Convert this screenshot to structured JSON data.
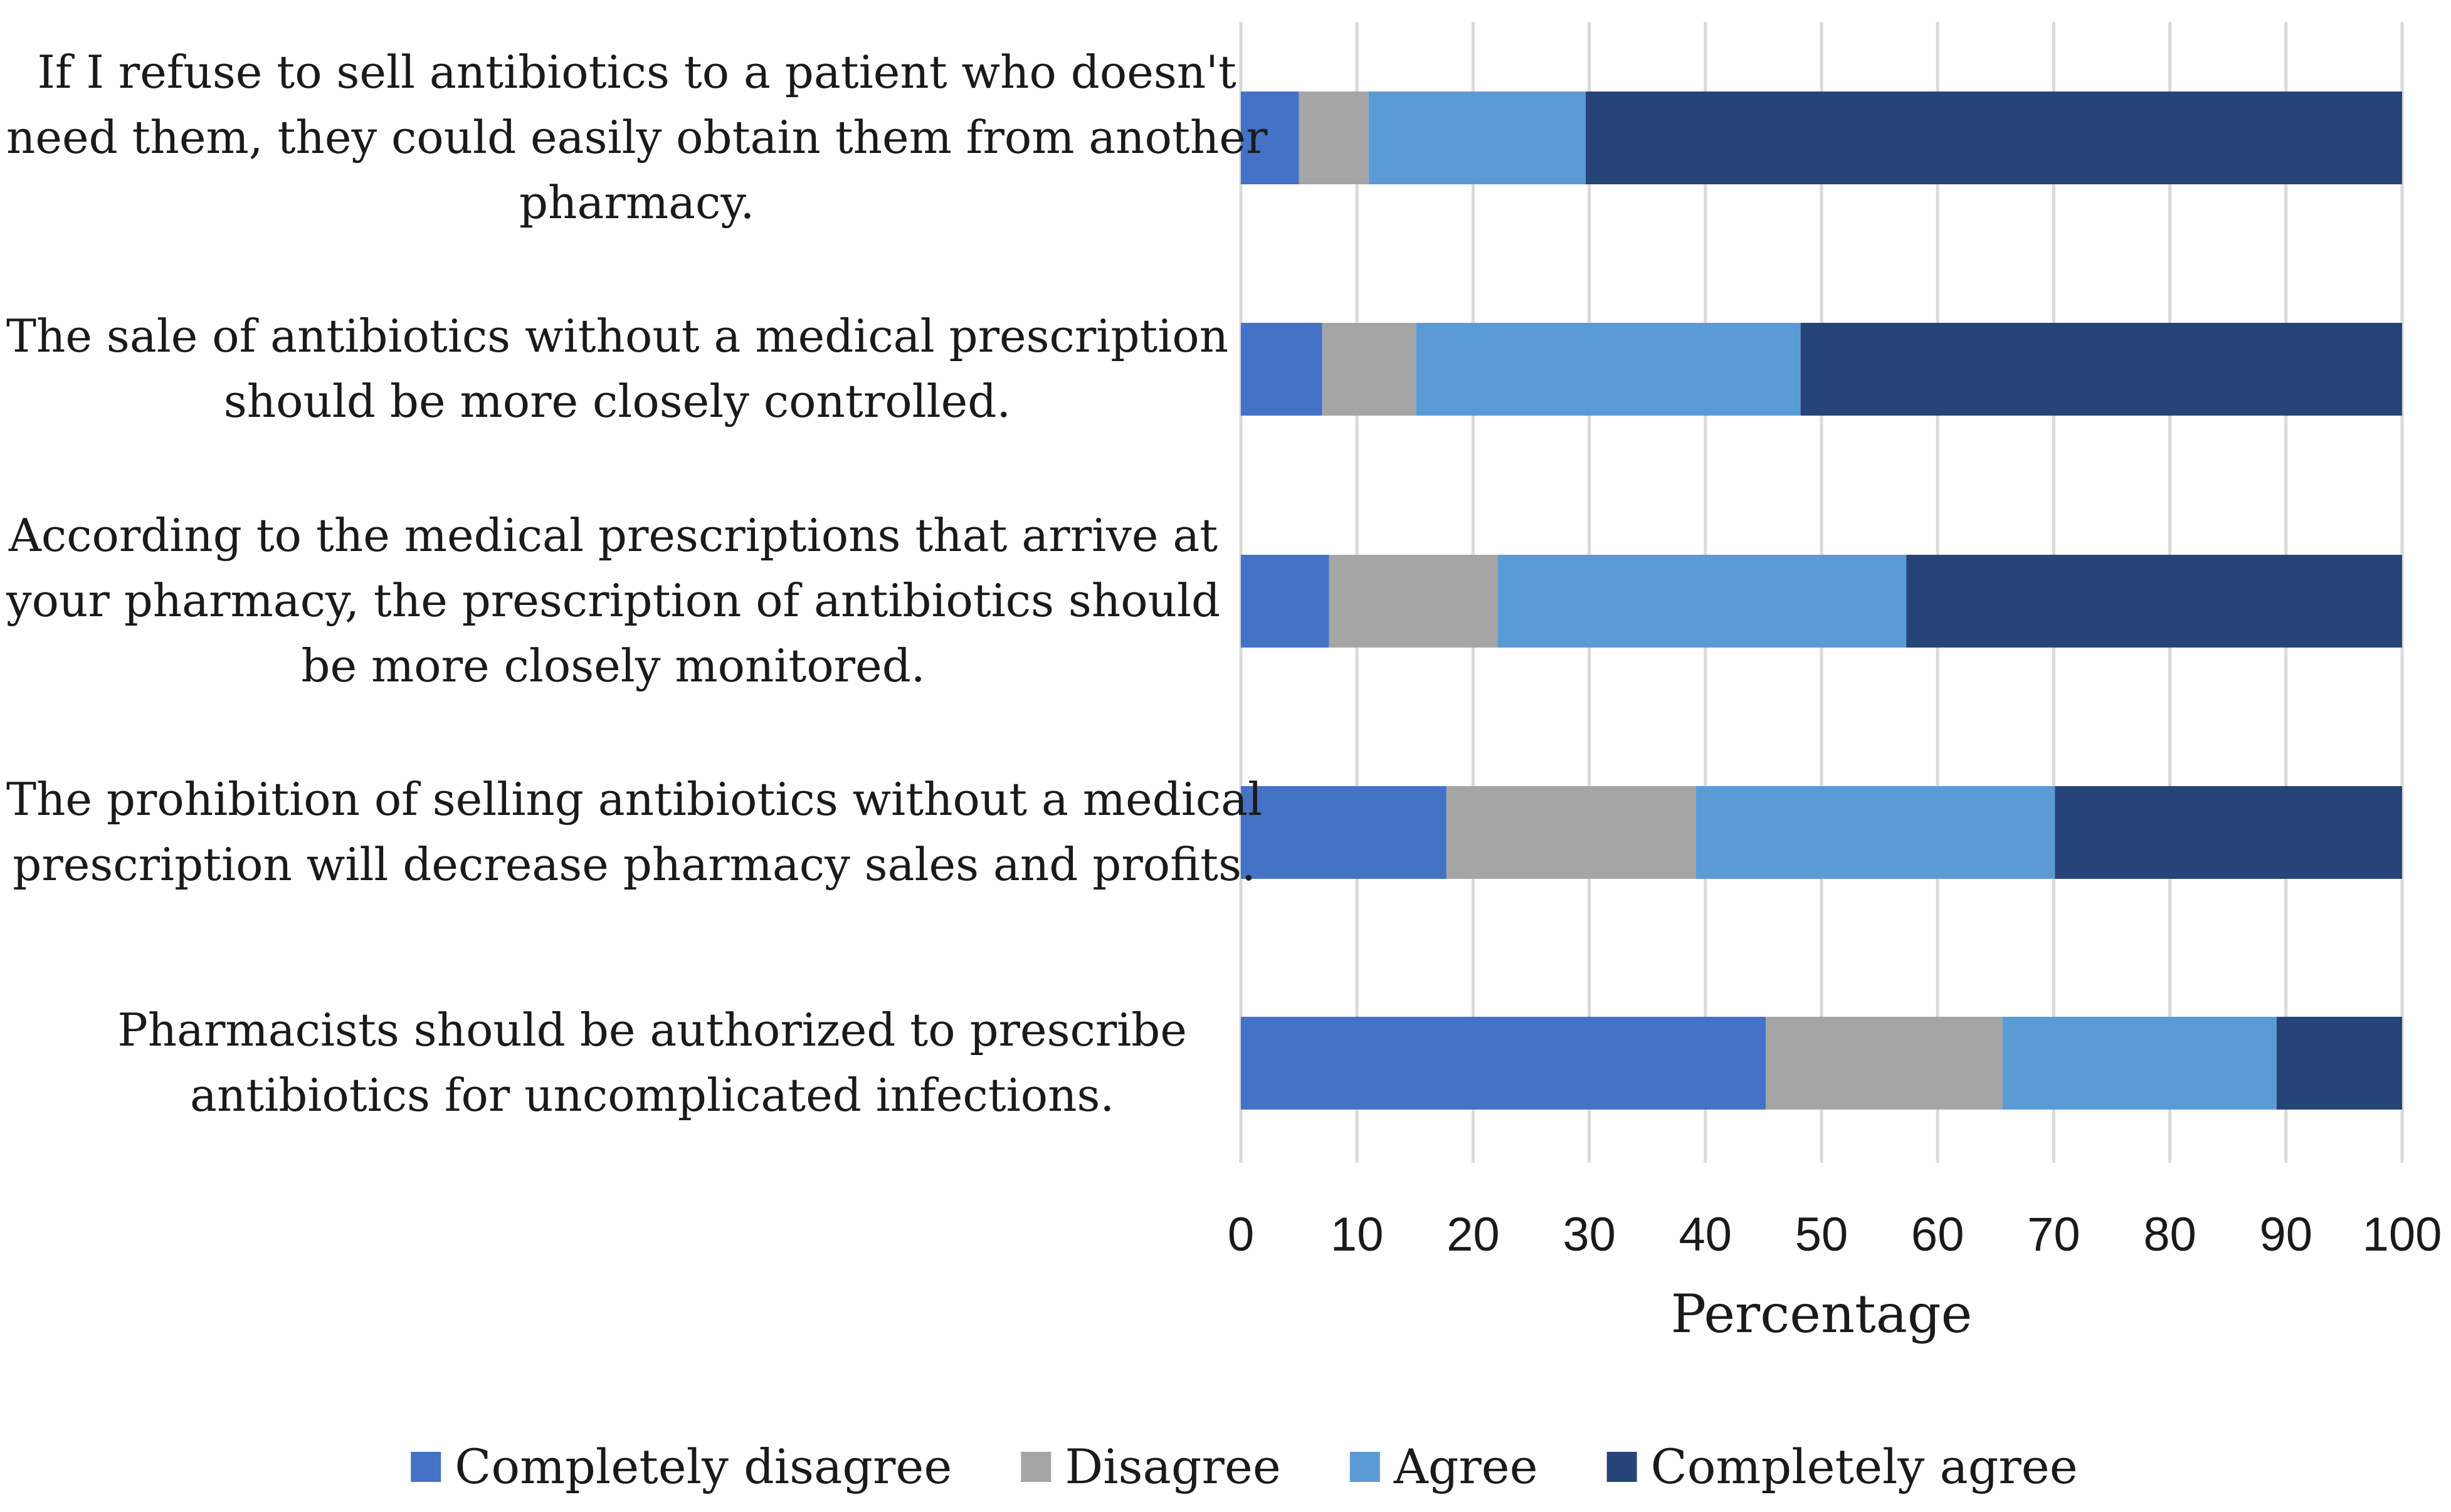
{
  "chart_data": {
    "type": "bar",
    "orientation": "horizontal",
    "stacked": true,
    "categories": [
      "If I refuse to sell antibiotics to a patient who doesn't need them, they could easily obtain them from another pharmacy.",
      "The sale of antibiotics without a medical prescription should be more closely controlled.",
      "According to the medical prescriptions that arrive at your pharmacy, the prescription of antibiotics should be more closely monitored.",
      "The prohibition of selling antibiotics without a medical prescription will decrease pharmacy sales and profits.",
      "Pharmacists should be authorized to prescribe antibiotics for uncomplicated infections."
    ],
    "category_lines": [
      [
        "If I refuse to sell antibiotics to a patient who doesn't",
        "need them, they could easily obtain them from another",
        "pharmacy."
      ],
      [
        "The sale of antibiotics without a medical prescription",
        "should be more closely controlled."
      ],
      [
        "According to the medical prescriptions that arrive at",
        "your pharmacy, the prescription of antibiotics should",
        "be more closely monitored."
      ],
      [
        "The prohibition of selling antibiotics without a medical",
        "prescription will decrease pharmacy sales and profits."
      ],
      [
        "Pharmacists should be authorized to prescribe",
        "antibiotics for uncomplicated infections."
      ]
    ],
    "series": [
      {
        "name": "Completely disagree",
        "color": "#4472C4",
        "values": [
          5,
          7,
          7.6,
          17.7,
          45.2
        ]
      },
      {
        "name": "Disagree",
        "color": "#A5A5A5",
        "values": [
          6,
          8.1,
          14.5,
          21.5,
          20.4
        ]
      },
      {
        "name": "Agree",
        "color": "#5B9BD5",
        "values": [
          18.7,
          33.1,
          35.2,
          30.9,
          23.6
        ]
      },
      {
        "name": "Completely agree",
        "color": "#264478",
        "values": [
          70.3,
          51.8,
          42.7,
          29.9,
          10.8
        ]
      }
    ],
    "xlim": [
      0,
      100
    ],
    "xticks": [
      0,
      10,
      20,
      30,
      40,
      50,
      60,
      70,
      80,
      90,
      100
    ],
    "xlabel": "Percentage",
    "ylabel": "",
    "title": "",
    "grid": "vertical",
    "legend_position": "bottom"
  }
}
